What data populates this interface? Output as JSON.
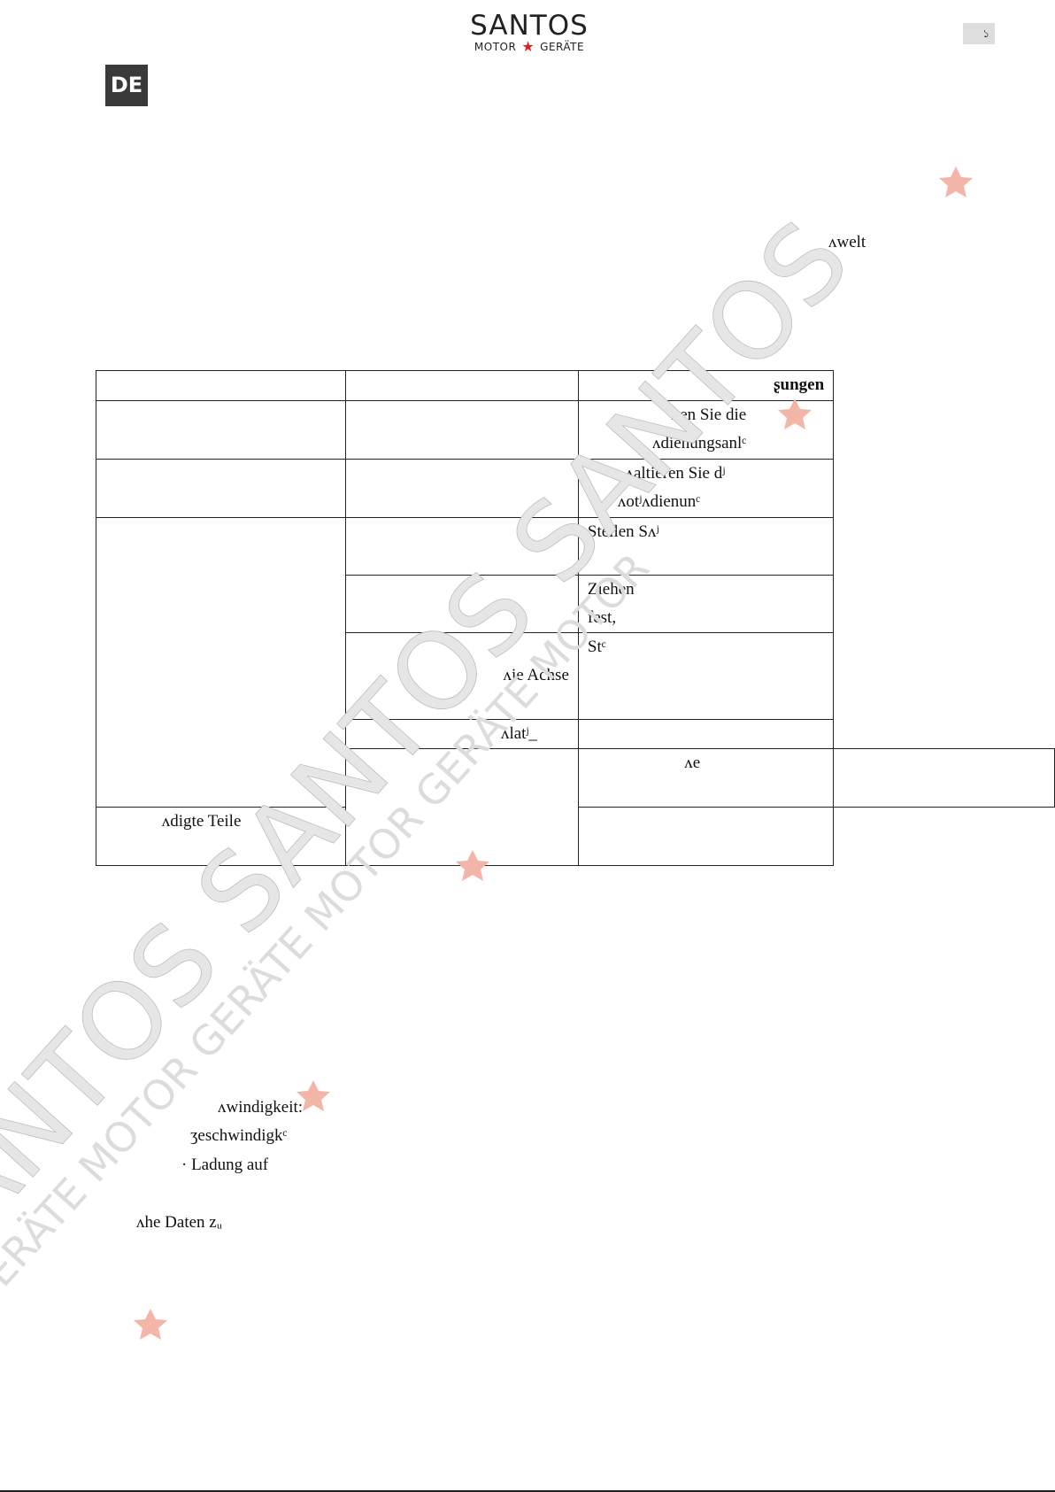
{
  "header": {
    "brand": "SANTOS",
    "brand_sub_left": "MOTOR",
    "brand_sub_right": "GERÄTE",
    "page_number": "১",
    "language": "DE"
  },
  "body_fragments": {
    "umwelt": "ᴧwelt",
    "speed1": "ᴧwindigkeit:",
    "speed2": "ʒeschwindigkᶜ",
    "charge": "· Ladung auf",
    "data": "ᴧhe Daten zᵤ"
  },
  "table": {
    "header_col3": "ʂungen",
    "rows": [
      {
        "c3": [
          "ᴧen Sie die",
          "ᴧdienungsanlᶜ"
        ]
      },
      {
        "c3": [
          "ᴧaltieren Sie dʲ",
          "ᴧotʲᴧdienunᶜ"
        ]
      },
      {
        "c3": [
          "Stellen Sᴧʲ"
        ]
      },
      {
        "c3": [
          "Ziehen",
          "fest,"
        ]
      },
      {
        "c2": "ᴧie Achse",
        "c3": [
          "Stᶜ"
        ]
      },
      {
        "c2": "ᴧlatʲ_"
      },
      {
        "c2": "ᴧe"
      },
      {
        "c2": "ᴧdigte Teile"
      }
    ]
  },
  "watermark": {
    "brand": "SANTOS",
    "sub": "GERÄTE MOTOR"
  }
}
